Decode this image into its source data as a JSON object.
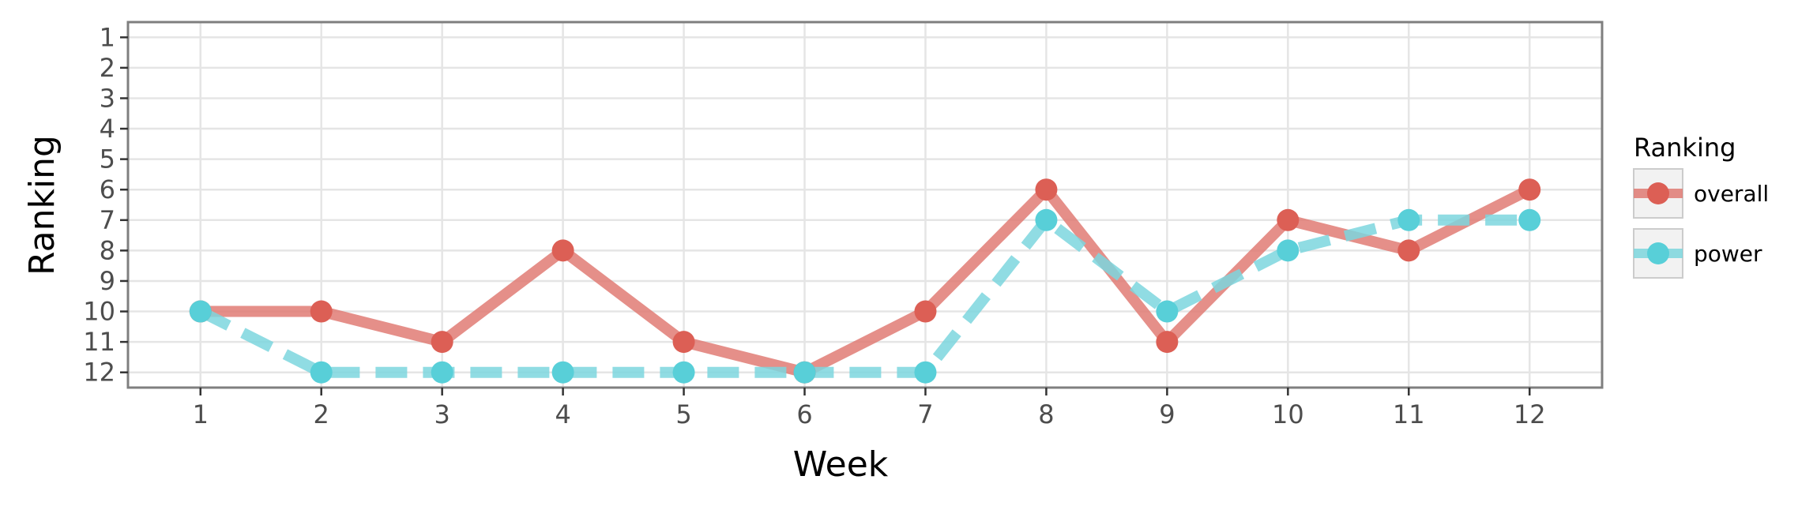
{
  "chart_data": {
    "type": "line",
    "xlabel": "Week",
    "ylabel": "Ranking",
    "x": [
      1,
      2,
      3,
      4,
      5,
      6,
      7,
      8,
      9,
      10,
      11,
      12
    ],
    "x_ticks": [
      "1",
      "2",
      "3",
      "4",
      "5",
      "6",
      "7",
      "8",
      "9",
      "10",
      "11",
      "12"
    ],
    "y_ticks": [
      "1",
      "2",
      "3",
      "4",
      "5",
      "6",
      "7",
      "8",
      "9",
      "10",
      "11",
      "12"
    ],
    "ylim": [
      12.5,
      0.5
    ],
    "y_reversed": true,
    "grid": true,
    "legend": {
      "title": "Ranking",
      "position": "right"
    },
    "series": [
      {
        "name": "overall",
        "values": [
          10,
          10,
          11,
          8,
          11,
          12,
          10,
          6,
          11,
          7,
          8,
          6
        ],
        "color": "#E07B74",
        "point_color": "#DC5F55",
        "dash": "solid"
      },
      {
        "name": "power",
        "values": [
          10,
          12,
          12,
          12,
          12,
          12,
          12,
          7,
          10,
          8,
          7,
          7
        ],
        "color": "#7DD6DE",
        "point_color": "#58CFD8",
        "dash": "dashed"
      }
    ]
  }
}
